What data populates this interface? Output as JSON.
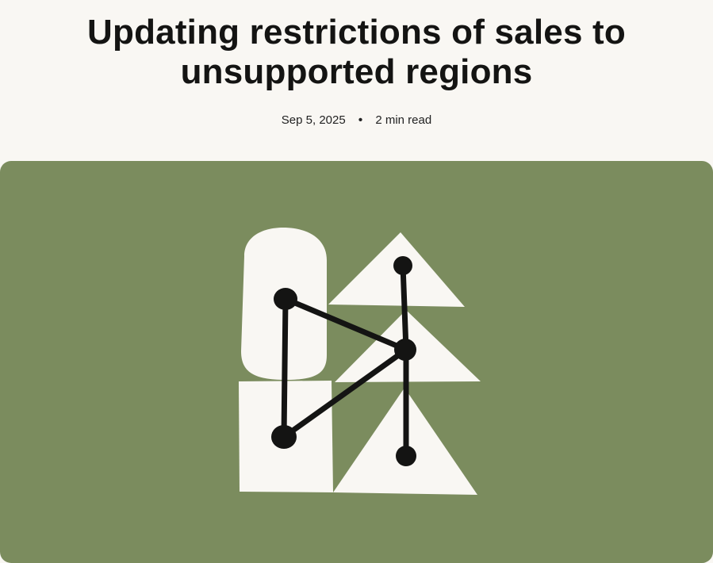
{
  "article": {
    "title": "Updating restrictions of sales to unsupported regions",
    "date": "Sep 5, 2025",
    "separator": "•",
    "read_time": "2 min read"
  },
  "hero": {
    "background_color": "#7b8c5e",
    "shape_color": "#f9f7f3",
    "line_color": "#141413",
    "icon": "connected-nodes-illustration"
  }
}
